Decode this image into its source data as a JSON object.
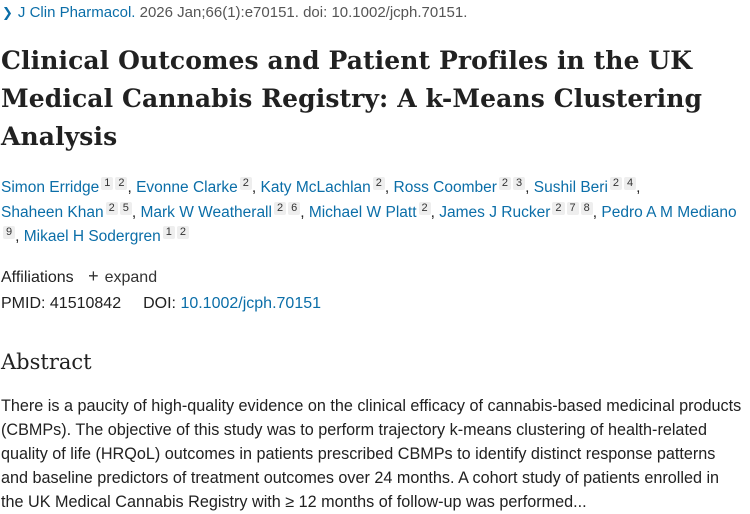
{
  "citation": {
    "journal": "J Clin Pharmacol.",
    "details": "2026 Jan;66(1):e70151. doi: 10.1002/jcph.70151."
  },
  "title": "Clinical Outcomes and Patient Profiles in the UK Medical Cannabis Registry: A k-Means Clustering Analysis",
  "authors": [
    {
      "name": "Simon Erridge",
      "affs": [
        "1",
        "2"
      ]
    },
    {
      "name": "Evonne Clarke",
      "affs": [
        "2"
      ]
    },
    {
      "name": "Katy McLachlan",
      "affs": [
        "2"
      ]
    },
    {
      "name": "Ross Coomber",
      "affs": [
        "2",
        "3"
      ]
    },
    {
      "name": "Sushil Beri",
      "affs": [
        "2",
        "4"
      ]
    },
    {
      "name": "Shaheen Khan",
      "affs": [
        "2",
        "5"
      ]
    },
    {
      "name": "Mark W Weatherall",
      "affs": [
        "2",
        "6"
      ]
    },
    {
      "name": "Michael W Platt",
      "affs": [
        "2"
      ]
    },
    {
      "name": "James J Rucker",
      "affs": [
        "2",
        "7",
        "8"
      ]
    },
    {
      "name": "Pedro A M Mediano",
      "affs": [
        "9"
      ]
    },
    {
      "name": "Mikael H Sodergren",
      "affs": [
        "1",
        "2"
      ]
    }
  ],
  "affiliations": {
    "label": "Affiliations",
    "expand_label": "expand"
  },
  "ids": {
    "pmid_label": "PMID:",
    "pmid": "41510842",
    "doi_label": "DOI:",
    "doi": "10.1002/jcph.70151"
  },
  "abstract": {
    "heading": "Abstract",
    "text": "There is a paucity of high-quality evidence on the clinical efficacy of cannabis-based medicinal products (CBMPs). The objective of this study was to perform trajectory k-means clustering of health-related quality of life (HRQoL) outcomes in patients prescribed CBMPs to identify distinct response patterns and baseline predictors of treatment outcomes over 24 months. A cohort study of patients enrolled in the UK Medical Cannabis Registry with ≥ 12 months of follow-up was performed..."
  }
}
